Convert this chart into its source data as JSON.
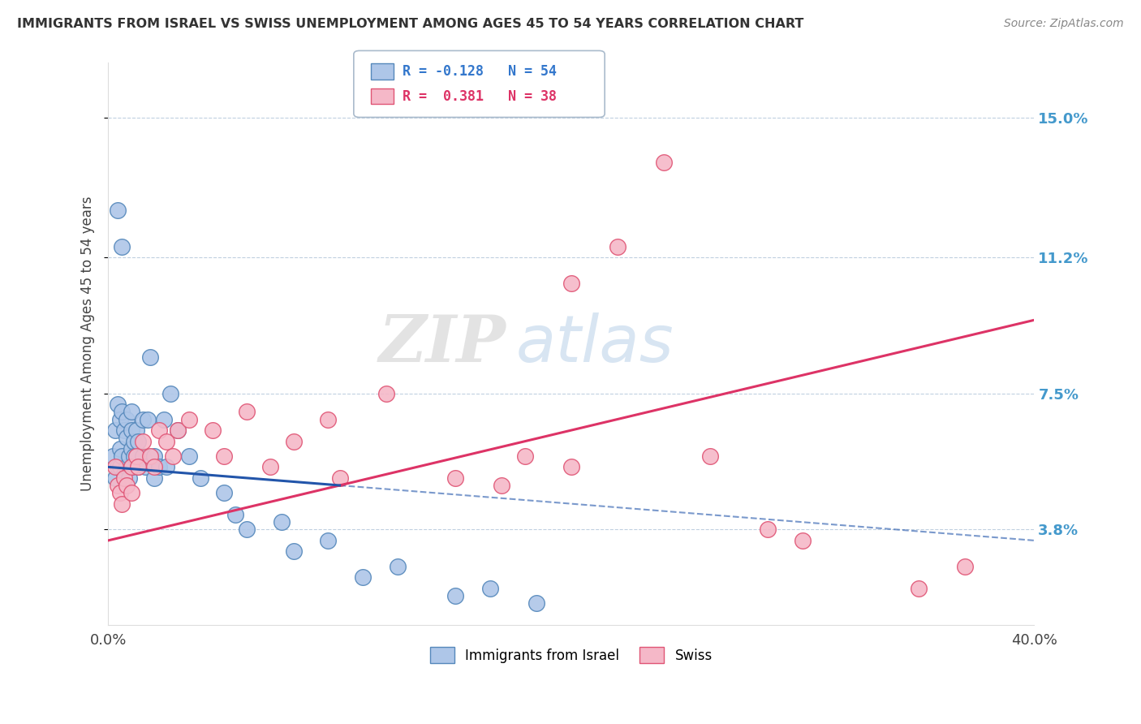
{
  "title": "IMMIGRANTS FROM ISRAEL VS SWISS UNEMPLOYMENT AMONG AGES 45 TO 54 YEARS CORRELATION CHART",
  "source": "Source: ZipAtlas.com",
  "ylabel": "Unemployment Among Ages 45 to 54 years",
  "xmin": 0.0,
  "xmax": 40.0,
  "ymin": 1.2,
  "ymax": 16.5,
  "yticks": [
    3.8,
    7.5,
    11.2,
    15.0
  ],
  "xticks": [
    0.0,
    40.0
  ],
  "xtick_labels": [
    "0.0%",
    "40.0%"
  ],
  "ytick_labels": [
    "3.8%",
    "7.5%",
    "11.2%",
    "15.0%"
  ],
  "legend_r1": "R = -0.128",
  "legend_n1": "N = 54",
  "legend_r2": "R =  0.381",
  "legend_n2": "N = 38",
  "blue_color": "#aec6e8",
  "pink_color": "#f5b8c8",
  "blue_edge": "#5588bb",
  "pink_edge": "#e05575",
  "blue_line_color": "#2255aa",
  "pink_line_color": "#dd3366",
  "watermark_zip": "ZIP",
  "watermark_atlas": "atlas",
  "blue_scatter_x": [
    0.2,
    0.3,
    0.3,
    0.4,
    0.4,
    0.5,
    0.5,
    0.5,
    0.6,
    0.6,
    0.7,
    0.7,
    0.8,
    0.8,
    0.8,
    0.9,
    0.9,
    1.0,
    1.0,
    1.0,
    1.0,
    1.1,
    1.1,
    1.2,
    1.2,
    1.3,
    1.3,
    1.5,
    1.5,
    1.6,
    1.7,
    1.8,
    2.0,
    2.0,
    2.2,
    2.4,
    2.5,
    2.7,
    3.0,
    3.5,
    4.0,
    5.0,
    5.5,
    6.0,
    7.5,
    8.0,
    9.5,
    11.0,
    12.5,
    15.0,
    16.5,
    18.5,
    0.4,
    0.6
  ],
  "blue_scatter_y": [
    5.8,
    6.5,
    5.2,
    7.2,
    5.5,
    6.8,
    6.0,
    5.5,
    7.0,
    5.8,
    6.5,
    5.3,
    6.8,
    6.3,
    5.5,
    5.8,
    5.2,
    7.0,
    6.5,
    6.0,
    5.5,
    6.2,
    5.8,
    6.5,
    5.8,
    6.2,
    5.5,
    6.8,
    5.8,
    5.5,
    6.8,
    8.5,
    5.8,
    5.2,
    5.5,
    6.8,
    5.5,
    7.5,
    6.5,
    5.8,
    5.2,
    4.8,
    4.2,
    3.8,
    4.0,
    3.2,
    3.5,
    2.5,
    2.8,
    2.0,
    2.2,
    1.8,
    12.5,
    11.5
  ],
  "pink_scatter_x": [
    0.3,
    0.4,
    0.5,
    0.6,
    0.7,
    0.8,
    1.0,
    1.0,
    1.2,
    1.3,
    1.5,
    1.8,
    2.0,
    2.2,
    2.5,
    2.8,
    3.0,
    3.5,
    4.5,
    5.0,
    6.0,
    7.0,
    8.0,
    9.5,
    10.0,
    12.0,
    15.0,
    18.0,
    20.0,
    22.0,
    24.0,
    26.0,
    28.5,
    30.0,
    35.0,
    37.0,
    17.0,
    20.0
  ],
  "pink_scatter_y": [
    5.5,
    5.0,
    4.8,
    4.5,
    5.2,
    5.0,
    5.5,
    4.8,
    5.8,
    5.5,
    6.2,
    5.8,
    5.5,
    6.5,
    6.2,
    5.8,
    6.5,
    6.8,
    6.5,
    5.8,
    7.0,
    5.5,
    6.2,
    6.8,
    5.2,
    7.5,
    5.2,
    5.8,
    10.5,
    11.5,
    13.8,
    5.8,
    3.8,
    3.5,
    2.2,
    2.8,
    5.0,
    5.5
  ],
  "blue_line_start_x": 0.0,
  "blue_line_start_y": 5.5,
  "blue_line_end_x": 40.0,
  "blue_line_end_y": 3.5,
  "pink_line_start_x": 0.0,
  "pink_line_start_y": 3.5,
  "pink_line_end_x": 40.0,
  "pink_line_end_y": 9.5
}
